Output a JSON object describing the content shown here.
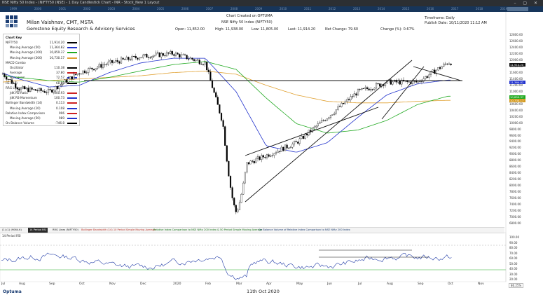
{
  "window_title": "NSE Nifty 50 Index - (NIFTY50 (NSE) - 1 Day Candlestick Chart - INR - Stock_New 1 Layout",
  "timeline_years": [
    "1999",
    "2000",
    "2001",
    "2002",
    "2003",
    "2004",
    "2005",
    "2006",
    "2007",
    "2008",
    "2009",
    "2010",
    "2011",
    "2012",
    "2013",
    "2014",
    "2015",
    "2016",
    "2017",
    "2018",
    "2019"
  ],
  "header": {
    "author": "Milan Vaishnav, CMT, MSTA",
    "firm": "Gemstone Equity Research & Advisory Services",
    "created": "Chart Created on OPTUMA",
    "instrument": "NSE Nifty 50 Index (NIFTY50)",
    "open": "Open: 11,852.00",
    "high": "High: 11,938.00",
    "low": "Low: 11,805.00",
    "last": "Last: 11,914.20",
    "net_change": "Net Change: 79.60",
    "pct_change": "Change (%): 0.67%",
    "timeframe": "Timeframe: Daily",
    "publish": "Publish Date: 10/11/2020 11:12 AM"
  },
  "chart_key": {
    "title": "Chart Key",
    "rows": [
      {
        "label": "NIFTY50",
        "value": "11,914.20",
        "color": "#000000"
      },
      {
        "label": "Moving Average (50)",
        "value": "11,364.82",
        "color": "#2233cc"
      },
      {
        "label": "Moving Average (100)",
        "value": "10,859.37",
        "color": "#22aa22"
      },
      {
        "label": "Moving Average (200)",
        "value": "10,730.17",
        "color": "#e0a030"
      },
      {
        "label": "MACD Combo",
        "value": "",
        "color": ""
      },
      {
        "label": "Oscillator",
        "value": "110.38",
        "color": "#000000"
      },
      {
        "label": "Average",
        "value": "37.80",
        "color": "#cc2222"
      },
      {
        "label": "Histogram",
        "value": "72.57",
        "color": "#2233cc"
      },
      {
        "label": "RSI (14)",
        "value": "68.98",
        "color": "#000000"
      },
      {
        "label": "RRG Lines (9)",
        "value": "",
        "color": ""
      },
      {
        "label": "JdK RS-Ratio",
        "value": "100.93",
        "color": "#cc2222"
      },
      {
        "label": "JdK RS-Momentum",
        "value": "100.73",
        "color": "#2233cc"
      },
      {
        "label": "Bollinger Bandwidth (14)",
        "value": "0.113",
        "color": "#cc2222"
      },
      {
        "label": "Moving Average (10)",
        "value": "0.108",
        "color": "#2233cc"
      },
      {
        "label": "Relative Index Comparison",
        "value": "996",
        "color": "#cc2222"
      },
      {
        "label": "Moving Average (50)",
        "value": "989",
        "color": "#2233cc"
      },
      {
        "label": "On Balance Volume",
        "value": "-746.8",
        "color": "#000000"
      }
    ]
  },
  "price_axis": [
    "12800.00",
    "12600.00",
    "12400.00",
    "12200.00",
    "12000.00",
    "11800.00",
    "11600.00",
    "11400.00",
    "11200.00",
    "11000.00",
    "10800.00",
    "10600.00",
    "10400.00",
    "10200.00",
    "10000.00",
    "9800.00",
    "9600.00",
    "9400.00",
    "9200.00",
    "9000.00",
    "8800.00",
    "8600.00",
    "8400.00",
    "8200.00",
    "8000.00",
    "7800.00",
    "7600.00",
    "7400.00",
    "7200.00",
    "7000.00",
    "6800.00"
  ],
  "price_tags": [
    {
      "text": "11,914.20",
      "color": "#111111"
    },
    {
      "text": "11,364.82",
      "color": "#2233cc"
    },
    {
      "text": "10,859.37",
      "color": "#22aa22"
    },
    {
      "text": "10,730.17",
      "color": "#d49a20"
    }
  ],
  "panel_tabs": [
    "(1) (1) (9064.6)",
    "14 Period RSI",
    "RRG Lines (NIFTY50)",
    "Bollinger Bandwidth (14) 10 Period Simple Moving Average",
    "Relative Index Comparison to NSE Nifty 200 Index & 50 Period Simple Moving Average",
    "On Balance Volume of Relative Index Comparison to NSE Nifty 200 Index"
  ],
  "rsi_panel": {
    "label": "14 Period RSI",
    "axis": [
      "100.00",
      "90.00",
      "80.00",
      "70.00",
      "60.00",
      "50.00",
      "40.00",
      "30.00",
      "20.00"
    ]
  },
  "x_axis": [
    "Jul",
    "Aug",
    "Sep",
    "Oct",
    "Nov",
    "Dec",
    "2020",
    "Feb",
    "Mar",
    "Apr",
    "May",
    "Jun",
    "Jul",
    "Aug",
    "Sep",
    "Oct",
    "Nov"
  ],
  "footer": {
    "brand": "Optuma",
    "caption": "11th Oct 2020",
    "zoom": "86.25%"
  },
  "chart_data": {
    "type": "candlestick",
    "title": "NSE Nifty 50 Index (NIFTY50)",
    "timeframe": "Daily",
    "ylim": [
      6800,
      12800
    ],
    "series": [
      {
        "name": "NIFTY50",
        "x": [
          "Jul",
          "Aug",
          "Sep",
          "Oct",
          "Nov",
          "Dec",
          "2020",
          "Feb",
          "Mar",
          "Apr",
          "May",
          "Jun",
          "Jul",
          "Aug",
          "Sep",
          "Oct"
        ],
        "values": [
          11600,
          11100,
          11000,
          11600,
          11900,
          12100,
          12200,
          11900,
          8600,
          9000,
          9400,
          10200,
          11000,
          11300,
          11300,
          11914
        ]
      },
      {
        "name": "Moving Average (50)",
        "x": [
          "Jul",
          "Aug",
          "Sep",
          "Oct",
          "Nov",
          "Dec",
          "2020",
          "Feb",
          "Mar",
          "Apr",
          "May",
          "Jun",
          "Jul",
          "Aug",
          "Sep",
          "Oct"
        ],
        "values": [
          11600,
          11400,
          11150,
          11200,
          11600,
          11900,
          12050,
          12050,
          11000,
          9300,
          9100,
          9400,
          10200,
          10900,
          11250,
          11365
        ]
      },
      {
        "name": "Moving Average (100)",
        "x": [
          "Jul",
          "Aug",
          "Sep",
          "Oct",
          "Nov",
          "Dec",
          "2020",
          "Feb",
          "Mar",
          "Apr",
          "May",
          "Jun",
          "Jul",
          "Aug",
          "Sep",
          "Oct"
        ],
        "values": [
          11500,
          11450,
          11350,
          11300,
          11450,
          11650,
          11850,
          11950,
          11700,
          10800,
          10000,
          9700,
          9800,
          10100,
          10600,
          10859
        ]
      },
      {
        "name": "Moving Average (200)",
        "x": [
          "Jul",
          "Aug",
          "Sep",
          "Oct",
          "Nov",
          "Dec",
          "2020",
          "Feb",
          "Mar",
          "Apr",
          "May",
          "Jun",
          "Jul",
          "Aug",
          "Sep",
          "Oct"
        ],
        "values": [
          11300,
          11350,
          11350,
          11400,
          11450,
          11500,
          11600,
          11650,
          11550,
          11200,
          10900,
          10700,
          10650,
          10650,
          10700,
          10730
        ]
      }
    ],
    "rsi": {
      "ylim": [
        20,
        100
      ],
      "reference_levels": [
        70,
        30
      ]
    },
    "grid": false
  }
}
